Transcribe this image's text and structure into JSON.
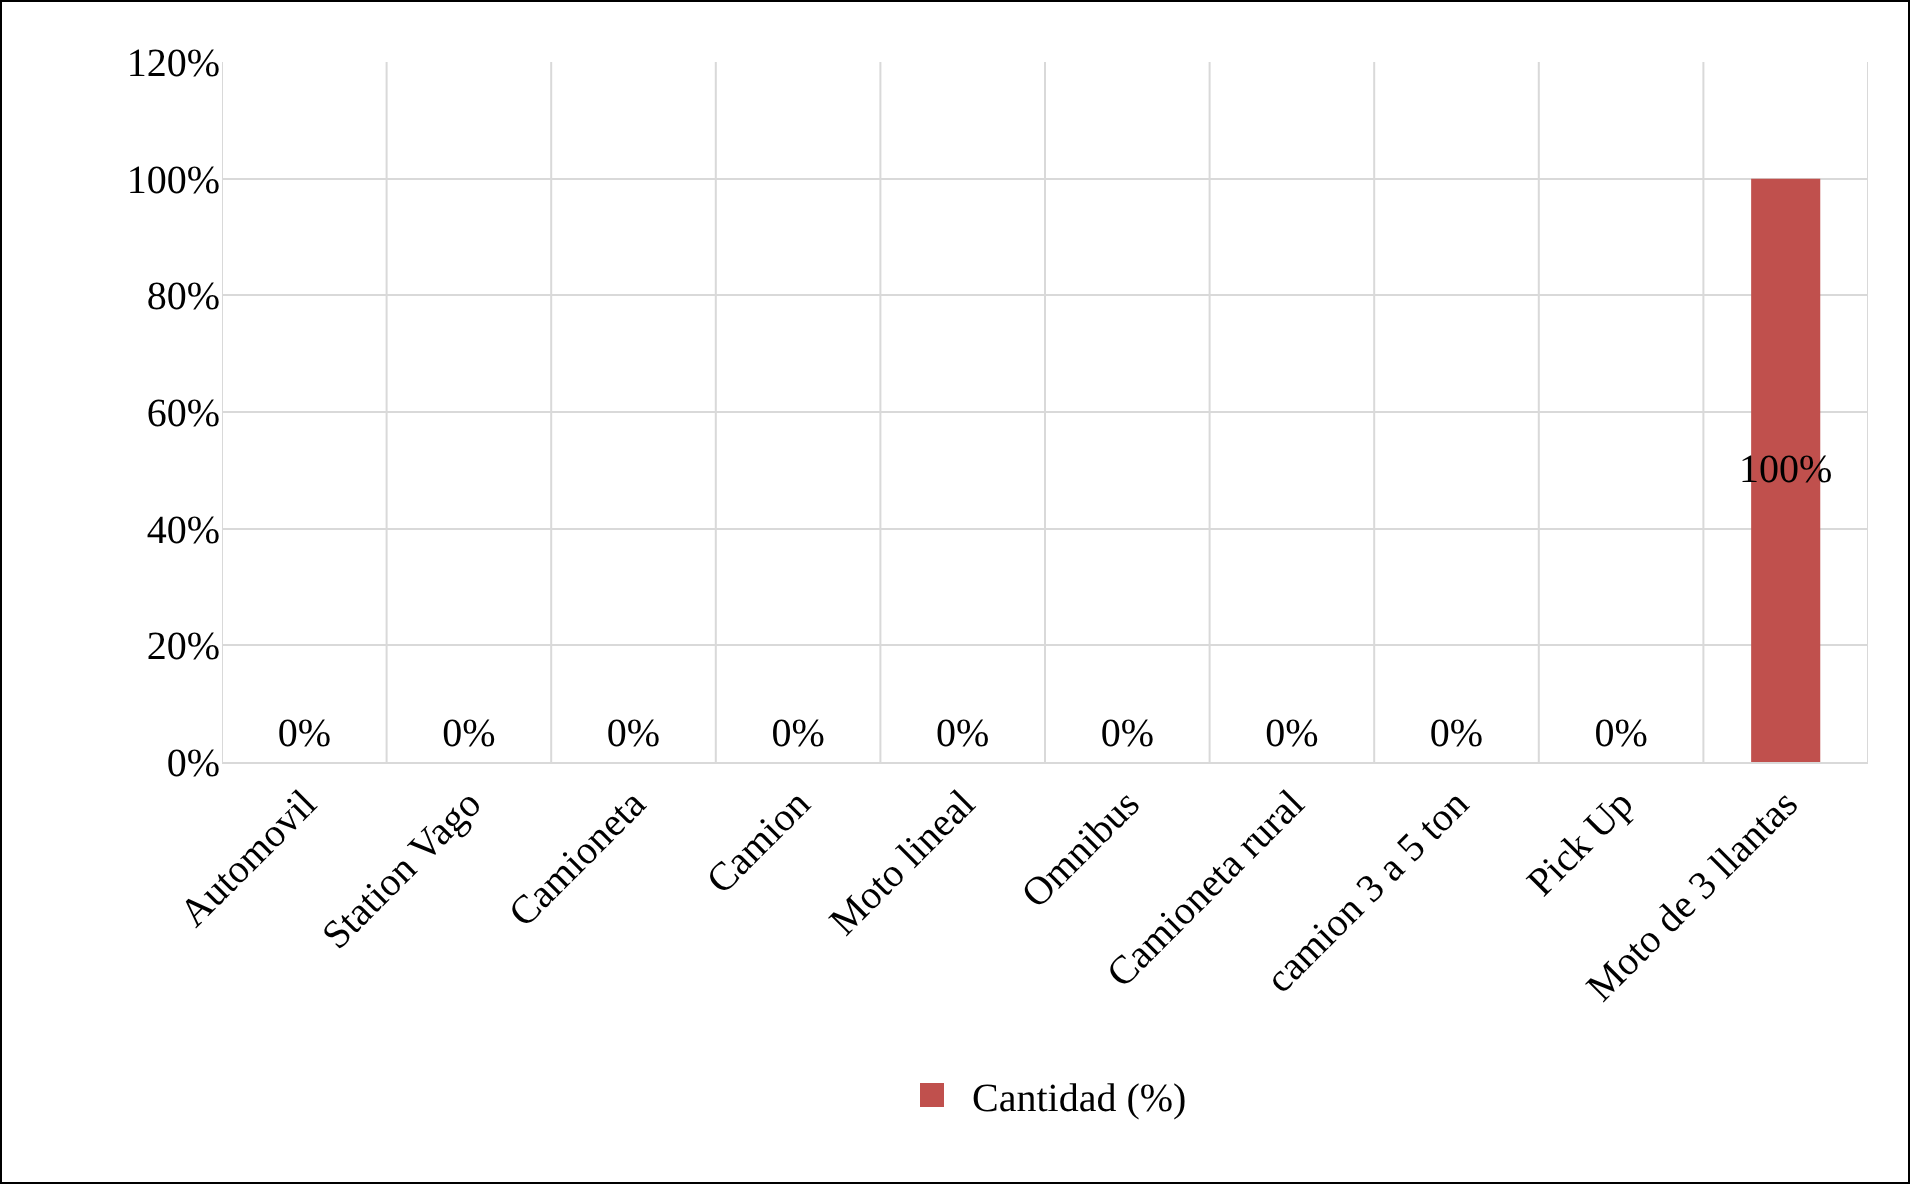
{
  "chart_data": {
    "type": "bar",
    "categories": [
      "Automovil",
      "Station Vago",
      "Camioneta",
      "Camion",
      "Moto lineal",
      "Omnibus",
      "Camioneta rural",
      "camion 3 a 5 ton",
      "Pick Up",
      "Moto de 3 llantas"
    ],
    "series": [
      {
        "name": "Cantidad (%)",
        "color": "#c0504d",
        "values": [
          0,
          0,
          0,
          0,
          0,
          0,
          0,
          0,
          0,
          100
        ],
        "value_labels": [
          "0%",
          "0%",
          "0%",
          "0%",
          "0%",
          "0%",
          "0%",
          "0%",
          "0%",
          "100%"
        ]
      }
    ],
    "ylim": [
      0,
      120
    ],
    "yticks": [
      {
        "value": 0,
        "label": "0%"
      },
      {
        "value": 20,
        "label": "20%"
      },
      {
        "value": 40,
        "label": "40%"
      },
      {
        "value": 60,
        "label": "60%"
      },
      {
        "value": 80,
        "label": "80%"
      },
      {
        "value": 100,
        "label": "100%"
      },
      {
        "value": 120,
        "label": "120%"
      }
    ],
    "grid": true,
    "legend": "bottom"
  }
}
